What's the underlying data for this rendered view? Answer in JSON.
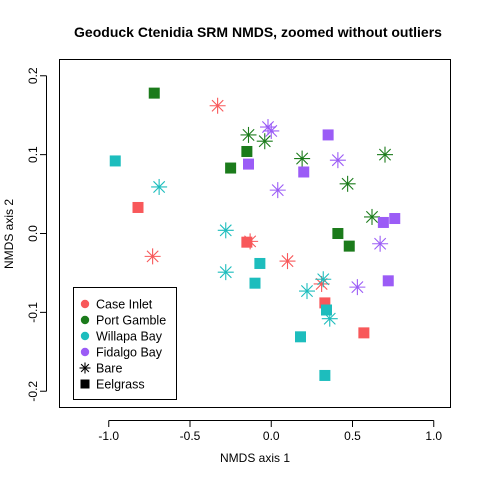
{
  "chart_data": {
    "type": "scatter",
    "title": "Geoduck Ctenidia SRM NMDS, zoomed without outliers",
    "xlabel": "NMDS axis 1",
    "ylabel": "NMDS axis 2",
    "xlim": [
      -1.3,
      1.1
    ],
    "ylim": [
      -0.22,
      0.22
    ],
    "xticks": [
      "-1.0",
      "-0.5",
      "0.0",
      "0.5",
      "1.0"
    ],
    "yticks": [
      "-0.2",
      "-0.1",
      "0.0",
      "0.1",
      "0.2"
    ],
    "grid": false,
    "legend_position": "bottom-left",
    "colors": {
      "Case Inlet": "#F8585A",
      "Port Gamble": "#1B7B1B",
      "Willapa Bay": "#1DBDBD",
      "Fidalgo Bay": "#9B5CF6"
    },
    "legend": [
      {
        "label": "Case Inlet",
        "symbol": "dot",
        "color": "#F8585A"
      },
      {
        "label": "Port Gamble",
        "symbol": "dot",
        "color": "#1B7B1B"
      },
      {
        "label": "Willapa Bay",
        "symbol": "dot",
        "color": "#1DBDBD"
      },
      {
        "label": "Fidalgo Bay",
        "symbol": "dot",
        "color": "#9B5CF6"
      },
      {
        "label": "Bare",
        "symbol": "star",
        "color": "#000000"
      },
      {
        "label": "Eelgrass",
        "symbol": "square",
        "color": "#000000"
      }
    ],
    "series": [
      {
        "site": "Case Inlet",
        "habitat": "Eelgrass",
        "marker": "square",
        "x": [
          -0.82,
          -0.15,
          0.33,
          0.57
        ],
        "y": [
          0.033,
          -0.011,
          -0.088,
          -0.126
        ]
      },
      {
        "site": "Case Inlet",
        "habitat": "Bare",
        "marker": "star",
        "x": [
          -0.33,
          -0.73,
          -0.13,
          0.1,
          0.31
        ],
        "y": [
          0.162,
          -0.029,
          -0.01,
          -0.035,
          -0.064
        ]
      },
      {
        "site": "Port Gamble",
        "habitat": "Eelgrass",
        "marker": "square",
        "x": [
          -0.72,
          -0.25,
          -0.15,
          0.41,
          0.48
        ],
        "y": [
          0.178,
          0.083,
          0.104,
          0.0,
          -0.016
        ]
      },
      {
        "site": "Port Gamble",
        "habitat": "Bare",
        "marker": "star",
        "x": [
          -0.14,
          -0.04,
          0.19,
          0.47,
          0.62,
          0.7
        ],
        "y": [
          0.125,
          0.117,
          0.095,
          0.063,
          0.021,
          0.1
        ]
      },
      {
        "site": "Willapa Bay",
        "habitat": "Eelgrass",
        "marker": "square",
        "x": [
          -0.96,
          -0.1,
          -0.07,
          0.18,
          0.34,
          0.33
        ],
        "y": [
          0.092,
          -0.063,
          -0.038,
          -0.131,
          -0.097,
          -0.18
        ]
      },
      {
        "site": "Willapa Bay",
        "habitat": "Bare",
        "marker": "star",
        "x": [
          -0.69,
          -0.28,
          -0.28,
          0.22,
          0.32,
          0.36
        ],
        "y": [
          0.059,
          0.004,
          -0.049,
          -0.073,
          -0.058,
          -0.108
        ]
      },
      {
        "site": "Fidalgo Bay",
        "habitat": "Eelgrass",
        "marker": "square",
        "x": [
          -0.14,
          0.2,
          0.35,
          0.69,
          0.76,
          0.72
        ],
        "y": [
          0.088,
          0.078,
          0.125,
          0.014,
          0.019,
          -0.06
        ]
      },
      {
        "site": "Fidalgo Bay",
        "habitat": "Bare",
        "marker": "star",
        "x": [
          -0.02,
          0.0,
          0.04,
          0.41,
          0.67,
          0.53
        ],
        "y": [
          0.135,
          0.13,
          0.055,
          0.093,
          -0.013,
          -0.068
        ]
      }
    ]
  }
}
